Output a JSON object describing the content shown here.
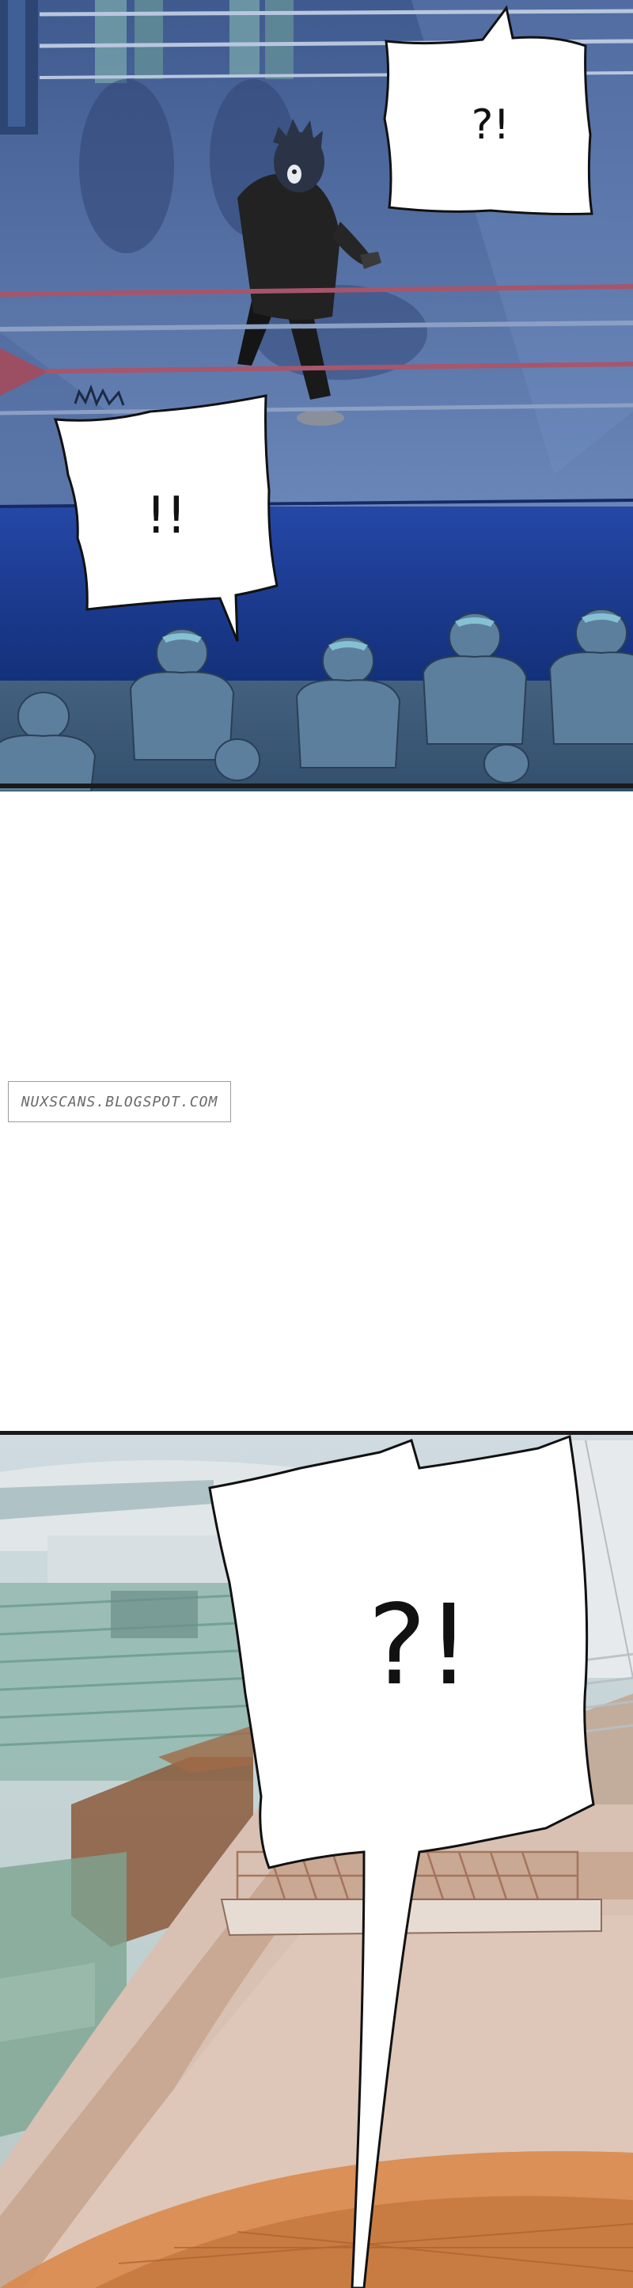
{
  "bubbles": {
    "top_right": "?!",
    "middle_left": "!!",
    "bottom_large": "?!"
  },
  "watermark": {
    "text": "NUXSCANS.BLOGSPOT.COM"
  },
  "colors": {
    "ring_floor": "#5c77a9",
    "ring_apron": "#1f3f9a",
    "crowd": "#5d7f9e",
    "sky": "#d6dde2",
    "roof": "#c7a592"
  }
}
